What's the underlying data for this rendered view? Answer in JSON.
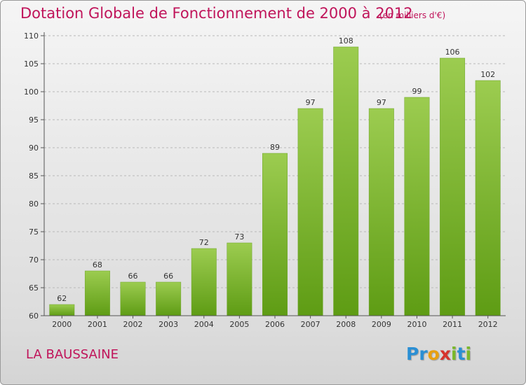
{
  "chart_data": {
    "type": "bar",
    "title": "Dotation Globale de Fonctionnement de 2000 à 2012",
    "subtitle": "(en milliers d'€)",
    "categories": [
      "2000",
      "2001",
      "2002",
      "2003",
      "2004",
      "2005",
      "2006",
      "2007",
      "2008",
      "2009",
      "2010",
      "2011",
      "2012"
    ],
    "values": [
      62,
      68,
      66,
      66,
      72,
      73,
      89,
      97,
      108,
      97,
      99,
      106,
      102
    ],
    "ylim": [
      60,
      110
    ],
    "yticks": [
      60,
      65,
      70,
      75,
      80,
      85,
      90,
      95,
      100,
      105,
      110
    ],
    "grid": "horizontal dashed",
    "bar_color_top": "#9ccc50",
    "bar_color_bottom": "#5e9c14"
  },
  "commune": "LA BAUSSAINE",
  "brand": {
    "letters": [
      "P",
      "r",
      "o",
      "x",
      "i",
      "t",
      "i"
    ],
    "colors": [
      "#2a8fd4",
      "#2a8fd4",
      "#e8a010",
      "#d6322c",
      "#7ab82a",
      "#2a8fd4",
      "#7ab82a"
    ]
  }
}
